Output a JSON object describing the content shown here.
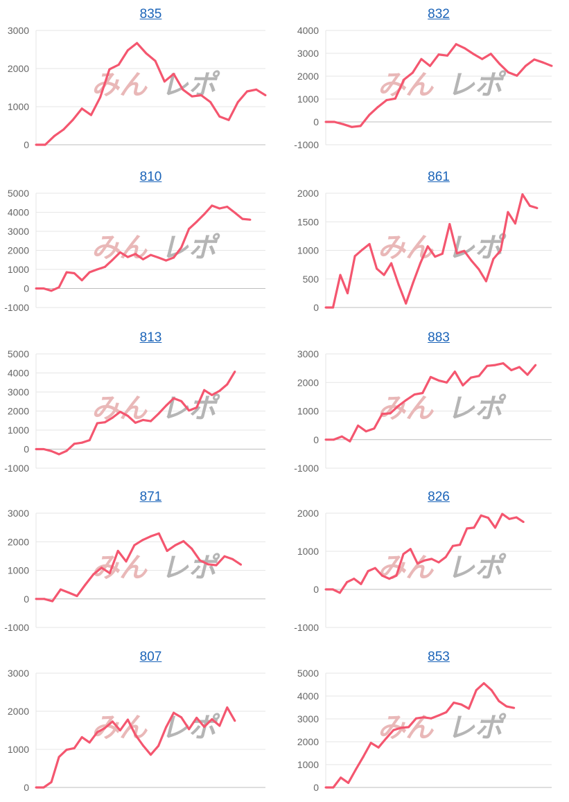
{
  "watermark": {
    "text_pink": "みん",
    "text_gray": "レポ"
  },
  "colors": {
    "line": "#f4566f",
    "grid": "#e6e6e6",
    "zero_line": "#bdbdbd",
    "title_link": "#1a63b8",
    "tick_text": "#666666"
  },
  "chart_data": [
    {
      "type": "line",
      "title": "835",
      "ylim": [
        0,
        3000
      ],
      "yticks": [
        "0",
        "1000",
        "2000",
        "3000"
      ],
      "xlim": [
        0,
        25
      ],
      "values": [
        0,
        0,
        230,
        400,
        650,
        950,
        780,
        1250,
        1980,
        2100,
        2480,
        2670,
        2400,
        2200,
        1660,
        1860,
        1450,
        1270,
        1300,
        1120,
        740,
        650,
        1120,
        1400,
        1450,
        1300
      ]
    },
    {
      "type": "line",
      "title": "832",
      "ylim": [
        -1000,
        4000
      ],
      "yticks": [
        "-1000",
        "0",
        "1000",
        "2000",
        "3000",
        "4000"
      ],
      "xlim": [
        0,
        26
      ],
      "values": [
        0,
        0,
        -100,
        -220,
        -180,
        300,
        650,
        950,
        1020,
        1850,
        2150,
        2750,
        2450,
        2950,
        2900,
        3400,
        3220,
        2970,
        2750,
        2980,
        2540,
        2170,
        2020,
        2450,
        2730,
        2600,
        2450
      ]
    },
    {
      "type": "line",
      "title": "810",
      "ylim": [
        -1000,
        5000
      ],
      "yticks": [
        "-1000",
        "0",
        "1000",
        "2000",
        "3000",
        "4000",
        "5000"
      ],
      "xlim": [
        0,
        30
      ],
      "values": [
        0,
        0,
        -120,
        60,
        850,
        800,
        430,
        850,
        1000,
        1130,
        1500,
        1900,
        1650,
        1810,
        1530,
        1760,
        1620,
        1470,
        1620,
        2150,
        3130,
        3500,
        3900,
        4350,
        4200,
        4290,
        3980,
        3650,
        3610
      ]
    },
    {
      "type": "line",
      "title": "861",
      "ylim": [
        0,
        2000
      ],
      "yticks": [
        "0",
        "500",
        "1000",
        "1500",
        "2000"
      ],
      "xlim": [
        0,
        31
      ],
      "values": [
        0,
        0,
        570,
        250,
        900,
        1010,
        1110,
        680,
        570,
        775,
        400,
        70,
        440,
        780,
        1070,
        890,
        940,
        1460,
        950,
        990,
        820,
        670,
        460,
        850,
        1000,
        1670,
        1470,
        1980,
        1780,
        1740
      ]
    },
    {
      "type": "line",
      "title": "813",
      "ylim": [
        -1000,
        5000
      ],
      "yticks": [
        "-1000",
        "0",
        "1000",
        "2000",
        "3000",
        "4000",
        "5000"
      ],
      "xlim": [
        0,
        30
      ],
      "values": [
        0,
        0,
        -100,
        -270,
        -90,
        280,
        340,
        470,
        1360,
        1410,
        1650,
        1960,
        1750,
        1385,
        1530,
        1470,
        1850,
        2280,
        2670,
        2520,
        2030,
        2180,
        3100,
        2840,
        3060,
        3400,
        4070
      ]
    },
    {
      "type": "line",
      "title": "883",
      "ylim": [
        -1000,
        3000
      ],
      "yticks": [
        "-1000",
        "0",
        "1000",
        "2000",
        "3000"
      ],
      "xlim": [
        0,
        28
      ],
      "values": [
        0,
        0,
        110,
        -60,
        490,
        290,
        390,
        900,
        920,
        1180,
        1390,
        1580,
        1630,
        2190,
        2070,
        2000,
        2380,
        1900,
        2170,
        2230,
        2580,
        2610,
        2670,
        2430,
        2540,
        2270,
        2610
      ]
    },
    {
      "type": "line",
      "title": "871",
      "ylim": [
        -1000,
        3000
      ],
      "yticks": [
        "-1000",
        "0",
        "1000",
        "2000",
        "3000"
      ],
      "xlim": [
        0,
        28
      ],
      "values": [
        0,
        0,
        -80,
        330,
        220,
        100,
        490,
        860,
        1090,
        900,
        1680,
        1310,
        1880,
        2060,
        2190,
        2290,
        1680,
        1880,
        2020,
        1760,
        1350,
        1210,
        1180,
        1490,
        1390,
        1200
      ]
    },
    {
      "type": "line",
      "title": "826",
      "ylim": [
        -1000,
        2000
      ],
      "yticks": [
        "-1000",
        "0",
        "1000",
        "2000"
      ],
      "xlim": [
        0,
        32
      ],
      "values": [
        0,
        0,
        -90,
        190,
        280,
        140,
        480,
        560,
        360,
        280,
        360,
        930,
        1060,
        680,
        760,
        800,
        710,
        850,
        1140,
        1170,
        1600,
        1620,
        1940,
        1880,
        1620,
        1980,
        1850,
        1890,
        1770
      ]
    },
    {
      "type": "line",
      "title": "807",
      "ylim": [
        0,
        3000
      ],
      "yticks": [
        "0",
        "1000",
        "2000",
        "3000"
      ],
      "xlim": [
        0,
        30
      ],
      "values": [
        0,
        0,
        140,
        800,
        990,
        1030,
        1320,
        1180,
        1450,
        1560,
        1730,
        1500,
        1780,
        1380,
        1100,
        860,
        1090,
        1580,
        1960,
        1840,
        1530,
        1830,
        1590,
        1790,
        1620,
        2100,
        1750
      ]
    },
    {
      "type": "line",
      "title": "853",
      "ylim": [
        0,
        5000
      ],
      "yticks": [
        "0",
        "1000",
        "2000",
        "3000",
        "4000",
        "5000"
      ],
      "xlim": [
        0,
        30
      ],
      "values": [
        0,
        0,
        430,
        200,
        790,
        1350,
        1950,
        1750,
        2140,
        2510,
        2610,
        2640,
        3020,
        3070,
        3020,
        3150,
        3290,
        3710,
        3630,
        3450,
        4260,
        4560,
        4260,
        3780,
        3550,
        3480
      ]
    }
  ]
}
